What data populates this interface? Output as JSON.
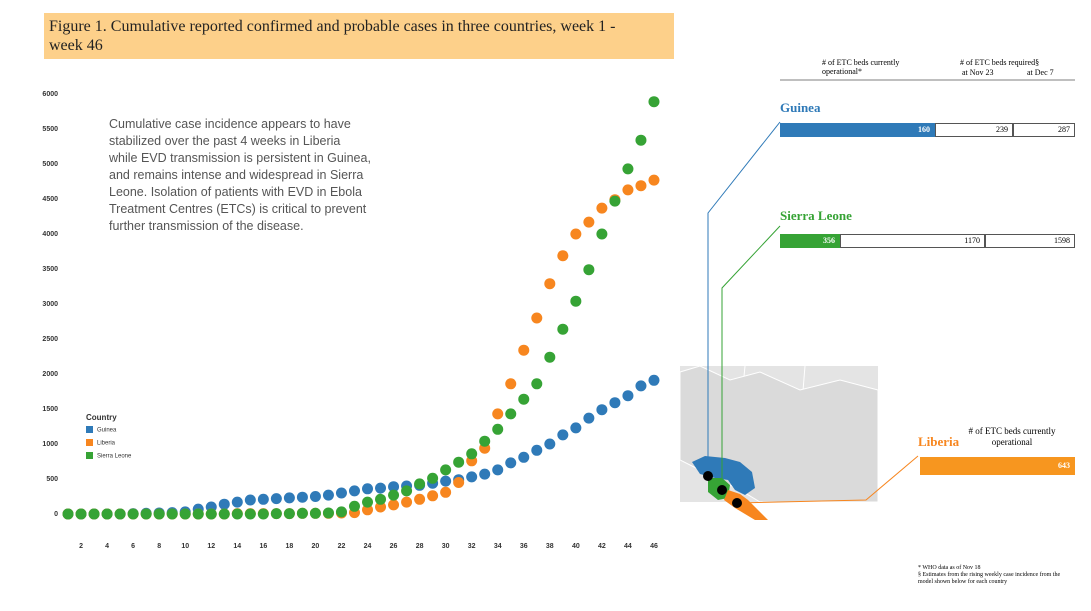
{
  "chart_data": {
    "type": "scatter",
    "figure_label": "Figure 1.",
    "title": "Cumulative reported confirmed and probable cases in three countries, week 1 - week 46",
    "annotation": "Cumulative case incidence appears to have stabilized over the past 4 weeks in Liberia while EVD transmission is persistent in Guinea, and remains intense and widespread in Sierra Leone. Isolation of patients with EVD in Ebola Treatment Centres (ETCs) is critical to prevent further transmission of the disease.",
    "x": [
      1,
      2,
      3,
      4,
      5,
      6,
      7,
      8,
      9,
      10,
      11,
      12,
      13,
      14,
      15,
      16,
      17,
      18,
      19,
      20,
      21,
      22,
      23,
      24,
      25,
      26,
      27,
      28,
      29,
      30,
      31,
      32,
      33,
      34,
      35,
      36,
      37,
      38,
      39,
      40,
      41,
      42,
      43,
      44,
      45,
      46
    ],
    "series": [
      {
        "name": "Guinea",
        "color": "#2f7ab8",
        "values": [
          0,
          0,
          0,
          0,
          0,
          5,
          10,
          15,
          20,
          30,
          70,
          100,
          140,
          170,
          200,
          210,
          220,
          230,
          240,
          250,
          270,
          300,
          330,
          360,
          370,
          390,
          400,
          410,
          440,
          470,
          490,
          530,
          570,
          630,
          730,
          810,
          910,
          1000,
          1130,
          1230,
          1370,
          1490,
          1590,
          1690,
          1830,
          1910
        ]
      },
      {
        "name": "Liberia",
        "color": "#f7861f",
        "values": [
          0,
          0,
          0,
          0,
          0,
          0,
          0,
          0,
          0,
          0,
          0,
          0,
          0,
          5,
          5,
          5,
          5,
          5,
          10,
          10,
          10,
          15,
          20,
          60,
          100,
          130,
          170,
          210,
          260,
          310,
          450,
          760,
          940,
          1430,
          1860,
          2340,
          2800,
          3290,
          3690,
          4000,
          4170,
          4370,
          4490,
          4630,
          4690,
          4770
        ]
      },
      {
        "name": "Sierra Leone",
        "color": "#36a335",
        "values": [
          0,
          0,
          0,
          0,
          0,
          0,
          0,
          0,
          0,
          0,
          0,
          0,
          0,
          0,
          0,
          0,
          5,
          5,
          10,
          10,
          15,
          30,
          110,
          170,
          210,
          270,
          330,
          430,
          510,
          630,
          740,
          860,
          1040,
          1210,
          1430,
          1640,
          1860,
          2240,
          2640,
          3040,
          3490,
          4000,
          4470,
          4930,
          5340,
          5890
        ]
      }
    ],
    "legend_title": "Country",
    "legend": "lower left",
    "grid": false,
    "xlim": [
      0,
      47
    ],
    "xticks": [
      2,
      4,
      6,
      8,
      10,
      12,
      14,
      16,
      18,
      20,
      22,
      24,
      26,
      28,
      30,
      32,
      34,
      36,
      38,
      40,
      42,
      44,
      46
    ],
    "ylim": [
      -300,
      6300
    ],
    "yticks": [
      0,
      500,
      1000,
      1500,
      2000,
      2500,
      3000,
      3500,
      4000,
      4500,
      5000,
      5500,
      6000
    ]
  },
  "beds": {
    "header_current": "# of ETC beds currently operational*",
    "header_required": "# of ETC beds required§",
    "header_nov23": "at Nov 23",
    "header_dec7": "at Dec 7",
    "guinea": {
      "name": "Guinea",
      "current": 160,
      "nov23": 239,
      "dec7": 287
    },
    "sierra_leone": {
      "name": "Sierra Leone",
      "current": 356,
      "nov23": 1170,
      "dec7": 1598
    },
    "liberia": {
      "name": "Liberia",
      "header": "# of ETC beds currently operational",
      "current": 643
    },
    "footnote_who": "* WHO data as of Nov 18",
    "footnote_est": "§ Estimates from the rising weekly case incidence from the model shown below for each country"
  }
}
